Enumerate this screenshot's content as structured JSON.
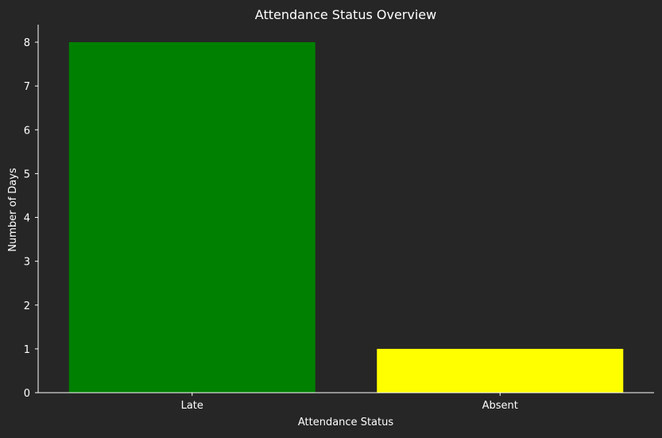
{
  "chart_data": {
    "type": "bar",
    "title": "Attendance Status Overview",
    "xlabel": "Attendance Status",
    "ylabel": "Number of Days",
    "categories": [
      "Late",
      "Absent"
    ],
    "values": [
      8,
      1
    ],
    "colors": [
      "#008000",
      "#ffff00"
    ],
    "ylim": [
      0,
      8.4
    ],
    "yticks": [
      0,
      1,
      2,
      3,
      4,
      5,
      6,
      7,
      8
    ],
    "grid": false,
    "legend": "none"
  },
  "theme": {
    "background": "#262626",
    "axis_color": "#ffffff",
    "text_color": "#ffffff"
  }
}
